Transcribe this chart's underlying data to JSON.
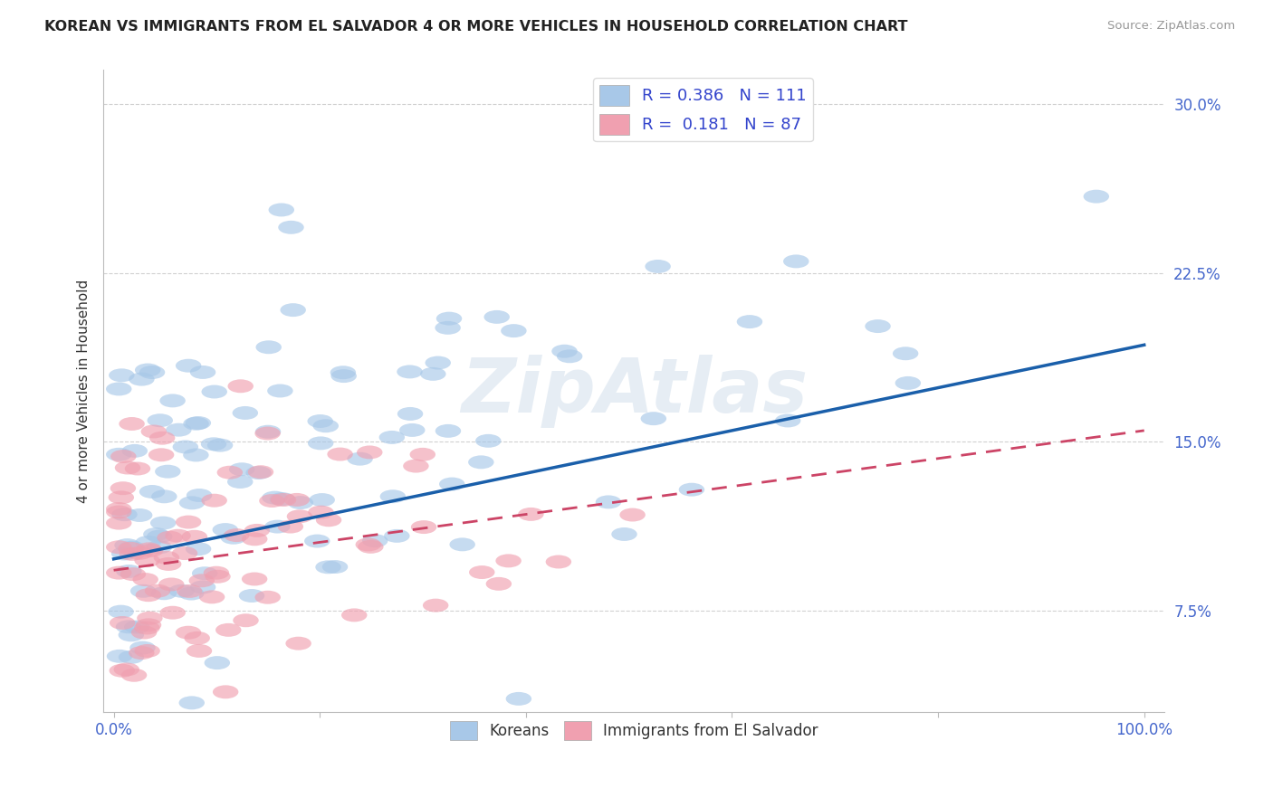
{
  "title": "KOREAN VS IMMIGRANTS FROM EL SALVADOR 4 OR MORE VEHICLES IN HOUSEHOLD CORRELATION CHART",
  "source": "Source: ZipAtlas.com",
  "ylabel": "4 or more Vehicles in Household",
  "yticks": [
    "7.5%",
    "15.0%",
    "22.5%",
    "30.0%"
  ],
  "ytick_vals": [
    0.075,
    0.15,
    0.225,
    0.3
  ],
  "ymin": 0.03,
  "ymax": 0.315,
  "xmin": -0.01,
  "xmax": 1.02,
  "blue_color": "#a8c8e8",
  "pink_color": "#f0a0b0",
  "blue_line_color": "#1a5faa",
  "pink_line_color": "#cc4466",
  "blue_line_start_y": 0.098,
  "blue_line_end_y": 0.193,
  "pink_line_start_y": 0.093,
  "pink_line_end_y": 0.155,
  "watermark": "ZipAtlas"
}
